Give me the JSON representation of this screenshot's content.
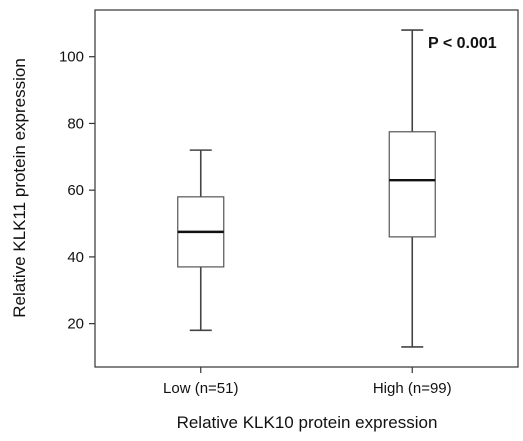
{
  "chart_data": {
    "type": "box",
    "xlabel": "Relative KLK10 protein expression",
    "ylabel": "Relative KLK11 protein expression",
    "categories": [
      "Low (n=51)",
      "High (n=99)"
    ],
    "boxes": [
      {
        "category": "Low (n=51)",
        "min": 18,
        "q1": 37,
        "median": 47.5,
        "q3": 58,
        "max": 72
      },
      {
        "category": "High (n=99)",
        "min": 13,
        "q1": 46,
        "median": 63,
        "q3": 77.5,
        "max": 108
      }
    ],
    "yticks": [
      20,
      40,
      60,
      80,
      100
    ],
    "ylim": [
      7,
      114
    ],
    "annotation": "P < 0.001",
    "grid": false,
    "legend": "none"
  }
}
